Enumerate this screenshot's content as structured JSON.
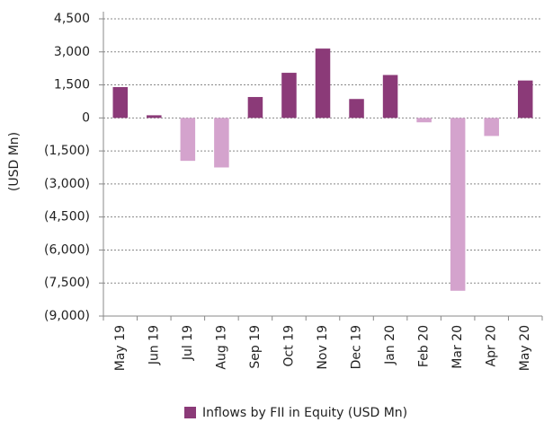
{
  "chart_data": {
    "type": "bar",
    "y_label": "(USD Mn)",
    "categories": [
      "May 19",
      "Jun 19",
      "Jul 19",
      "Aug 19",
      "Sep 19",
      "Oct 19",
      "Nov 19",
      "Dec 19",
      "Jan 20",
      "Feb 20",
      "Mar 20",
      "Apr 20",
      "May 20"
    ],
    "series": [
      {
        "name": "Inflows by FII in Equity (USD Mn)",
        "color": "#8b3a78",
        "negative_color": "#d4a3cd",
        "values": [
          1400,
          120,
          -1950,
          -2250,
          950,
          2050,
          3150,
          860,
          1950,
          -200,
          -7850,
          -820,
          1700
        ]
      }
    ],
    "ylim": [
      -9000,
      4500
    ],
    "yticks": [
      {
        "value": -9000,
        "label": "(9,000)"
      },
      {
        "value": -7500,
        "label": "(7,500)"
      },
      {
        "value": -6000,
        "label": "(6,000)"
      },
      {
        "value": -4500,
        "label": "(4,500)"
      },
      {
        "value": -3000,
        "label": "(3,000)"
      },
      {
        "value": -1500,
        "label": "(1,500)"
      },
      0,
      {
        "value": 1500,
        "label": "1,500"
      },
      {
        "value": 3000,
        "label": "3,000"
      },
      {
        "value": 4500,
        "label": "4,500"
      }
    ],
    "grid": true,
    "legend": "bottom"
  }
}
